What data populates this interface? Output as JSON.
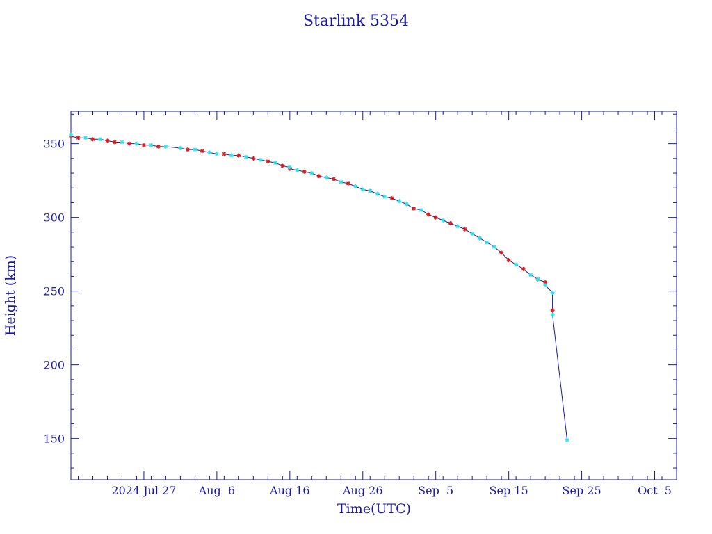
{
  "chart_data": {
    "type": "scatter",
    "title": "Starlink 5354",
    "xlabel": "Time(UTC)",
    "ylabel": "Height (km)",
    "x_ticks": [
      "2024 Jul 27",
      "Aug  6",
      "Aug 16",
      "Aug 26",
      "Sep  5",
      "Sep 15",
      "Sep 25",
      "Oct  5"
    ],
    "x_tick_dates": [
      "2024-07-27",
      "2024-08-06",
      "2024-08-16",
      "2024-08-26",
      "2024-09-05",
      "2024-09-15",
      "2024-09-25",
      "2024-10-05"
    ],
    "xlim": [
      "2024-07-17",
      "2024-10-08"
    ],
    "ylim": [
      122,
      372
    ],
    "y_ticks": [
      150,
      200,
      250,
      300,
      350
    ],
    "grid": false,
    "colors": {
      "frame": "#1a1aa0",
      "line": "#1a1aa0",
      "series_a": "#d81a1a",
      "series_b": "#33e0e8"
    },
    "series": [
      {
        "marker": "red-asterisk",
        "points": [
          [
            "2024-07-17",
            355
          ],
          [
            "2024-07-18",
            354
          ],
          [
            "2024-07-20",
            353
          ],
          [
            "2024-07-22",
            352
          ],
          [
            "2024-07-23",
            351
          ],
          [
            "2024-07-25",
            350
          ],
          [
            "2024-07-27",
            349
          ],
          [
            "2024-07-29",
            348
          ],
          [
            "2024-08-01",
            347
          ],
          [
            "2024-08-02",
            346
          ],
          [
            "2024-08-04",
            345
          ],
          [
            "2024-08-07",
            343
          ],
          [
            "2024-08-09",
            342
          ],
          [
            "2024-08-11",
            340
          ],
          [
            "2024-08-13",
            338
          ],
          [
            "2024-08-15",
            335
          ],
          [
            "2024-08-16",
            333
          ],
          [
            "2024-08-18",
            331
          ],
          [
            "2024-08-20",
            328
          ],
          [
            "2024-08-22",
            326
          ],
          [
            "2024-08-24",
            323
          ],
          [
            "2024-08-27",
            318
          ],
          [
            "2024-08-30",
            313
          ],
          [
            "2024-09-02",
            306
          ],
          [
            "2024-09-04",
            302
          ],
          [
            "2024-09-05",
            300
          ],
          [
            "2024-09-07",
            296
          ],
          [
            "2024-09-09",
            292
          ],
          [
            "2024-09-11",
            286
          ],
          [
            "2024-09-14",
            276
          ],
          [
            "2024-09-15",
            271
          ],
          [
            "2024-09-17",
            265
          ],
          [
            "2024-09-19",
            258
          ],
          [
            "2024-09-20",
            256
          ],
          [
            "2024-09-21",
            237
          ]
        ]
      },
      {
        "marker": "cyan-asterisk",
        "points": [
          [
            "2024-07-17",
            356
          ],
          [
            "2024-07-19",
            354
          ],
          [
            "2024-07-21",
            353
          ],
          [
            "2024-07-24",
            351
          ],
          [
            "2024-07-26",
            350
          ],
          [
            "2024-07-28",
            349
          ],
          [
            "2024-07-30",
            348
          ],
          [
            "2024-08-01",
            347
          ],
          [
            "2024-08-03",
            346
          ],
          [
            "2024-08-05",
            344
          ],
          [
            "2024-08-06",
            343
          ],
          [
            "2024-08-08",
            342
          ],
          [
            "2024-08-10",
            341
          ],
          [
            "2024-08-12",
            339
          ],
          [
            "2024-08-14",
            337
          ],
          [
            "2024-08-16",
            334
          ],
          [
            "2024-08-17",
            332
          ],
          [
            "2024-08-19",
            330
          ],
          [
            "2024-08-21",
            327
          ],
          [
            "2024-08-23",
            324
          ],
          [
            "2024-08-25",
            321
          ],
          [
            "2024-08-26",
            319
          ],
          [
            "2024-08-27",
            318
          ],
          [
            "2024-08-28",
            316
          ],
          [
            "2024-08-29",
            314
          ],
          [
            "2024-08-31",
            311
          ],
          [
            "2024-09-01",
            309
          ],
          [
            "2024-09-03",
            305
          ],
          [
            "2024-09-06",
            298
          ],
          [
            "2024-09-08",
            294
          ],
          [
            "2024-09-10",
            289
          ],
          [
            "2024-09-11",
            286
          ],
          [
            "2024-09-12",
            283
          ],
          [
            "2024-09-13",
            280
          ],
          [
            "2024-09-16",
            268
          ],
          [
            "2024-09-18",
            261
          ],
          [
            "2024-09-19",
            258
          ],
          [
            "2024-09-20",
            254
          ],
          [
            "2024-09-21",
            249
          ],
          [
            "2024-09-21",
            234
          ],
          [
            "2024-09-23",
            149
          ]
        ]
      }
    ]
  }
}
